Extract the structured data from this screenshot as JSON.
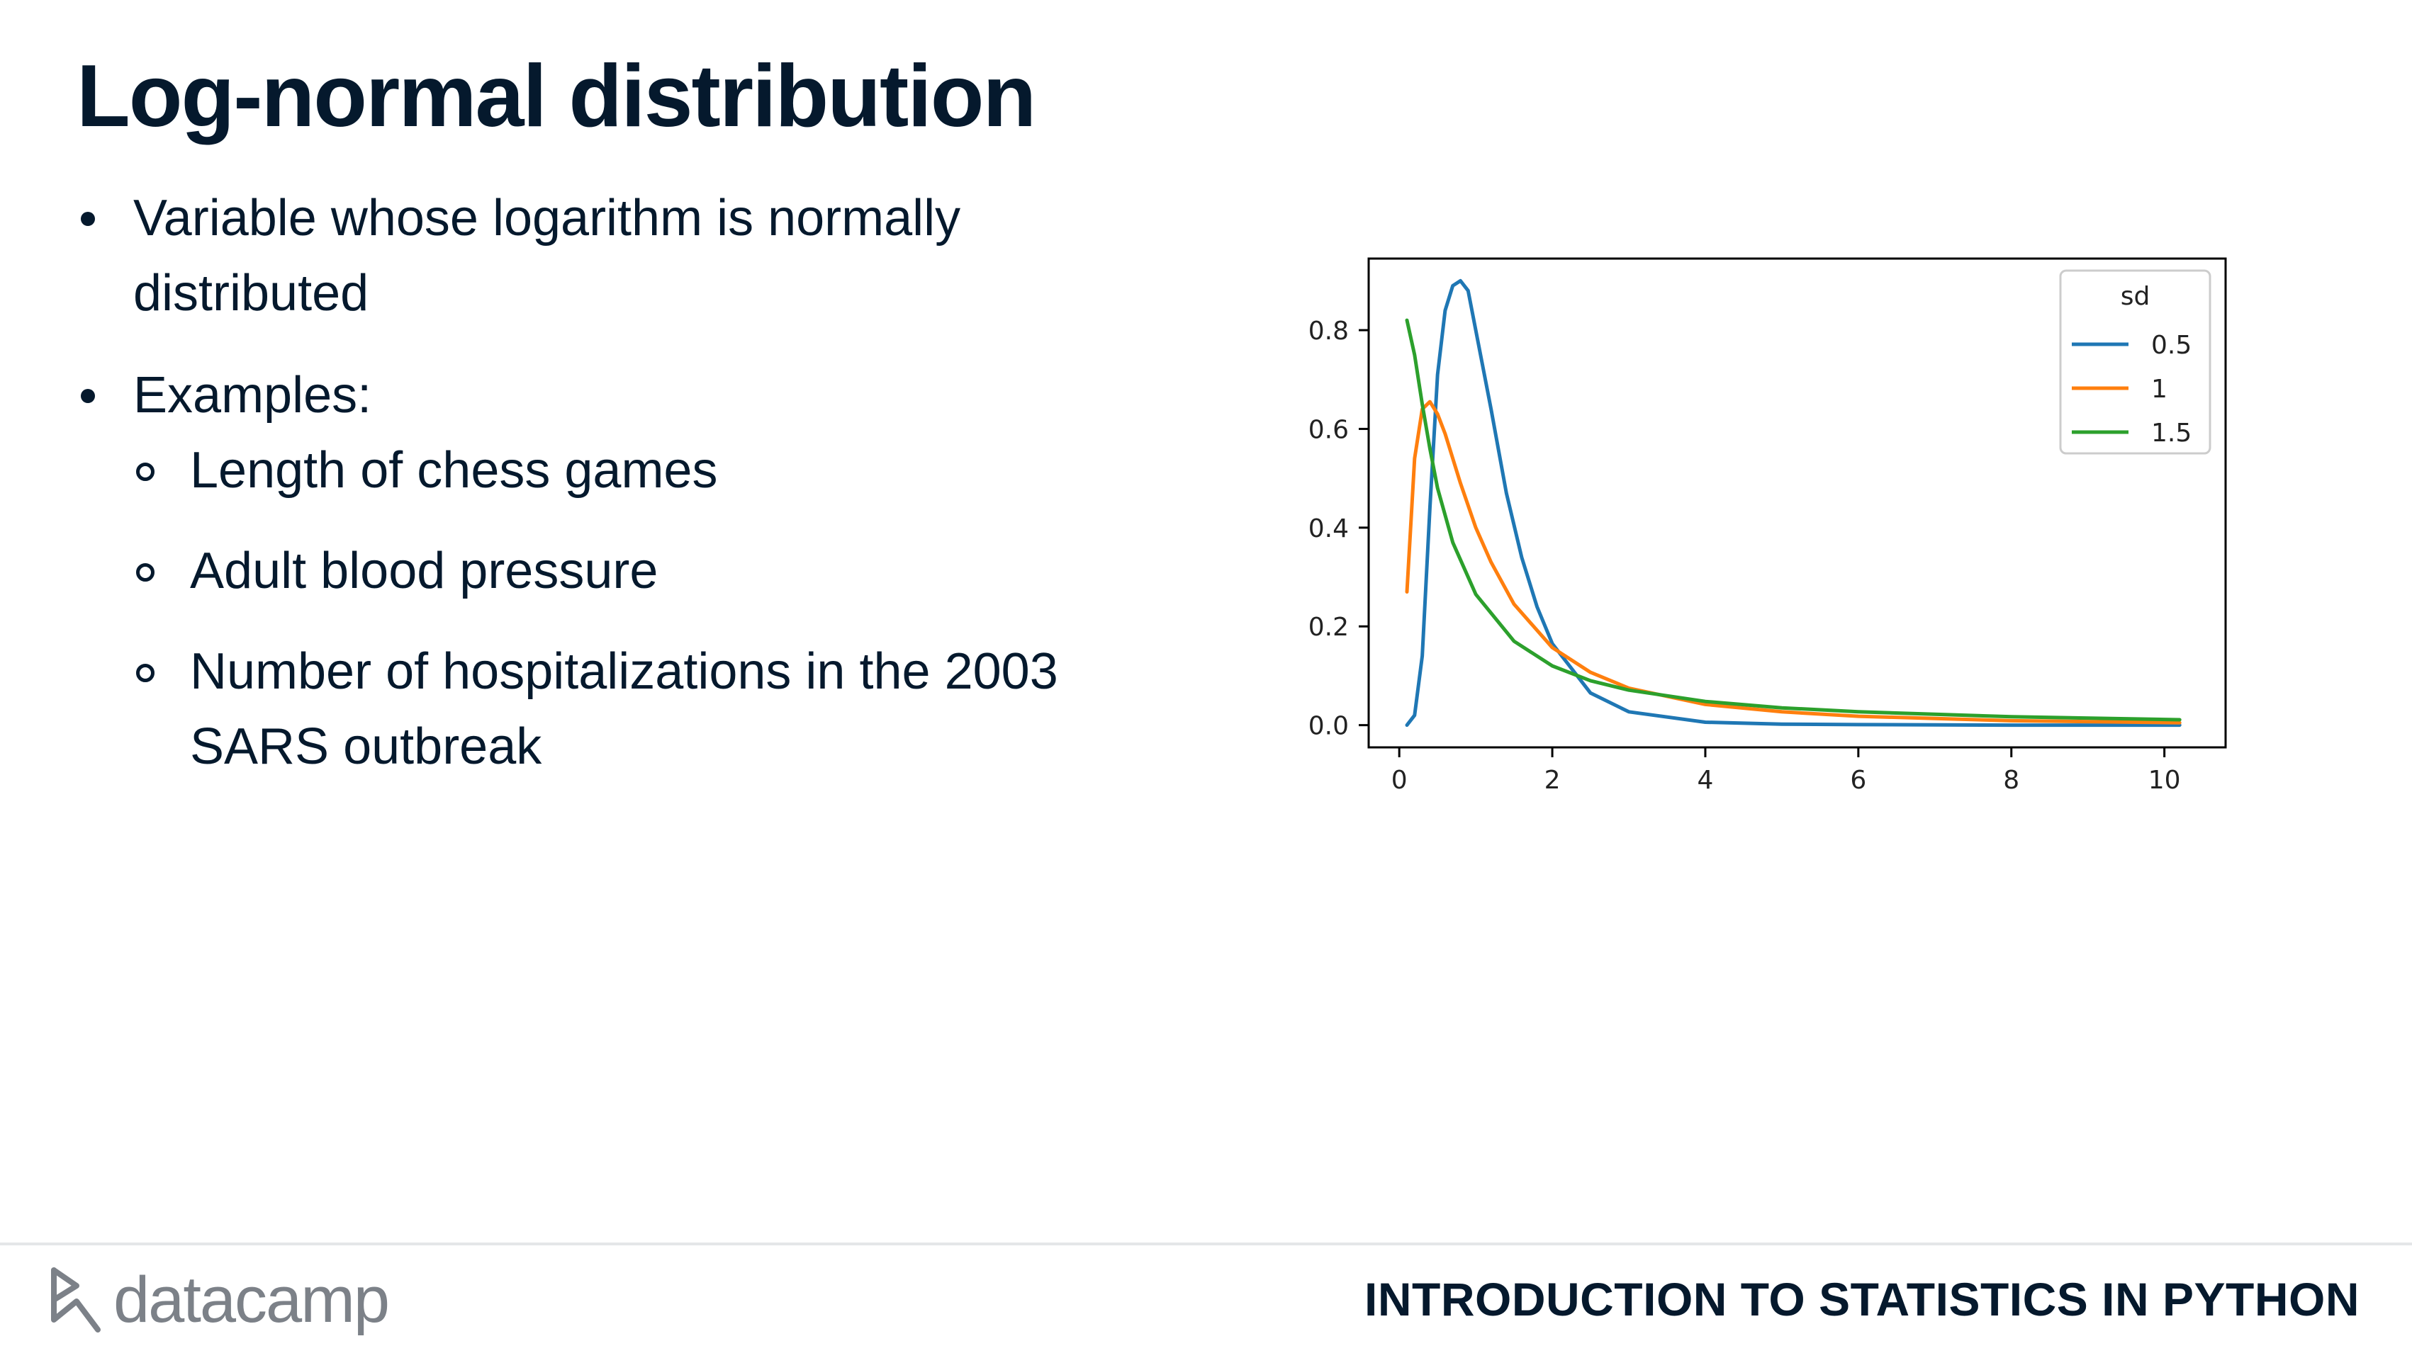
{
  "slide": {
    "title": "Log-normal distribution",
    "bullets": [
      {
        "level": 1,
        "lines": [
          "Variable whose logarithm is normally",
          "distributed"
        ]
      },
      {
        "level": 1,
        "lines": [
          "Examples:"
        ]
      },
      {
        "level": 2,
        "lines": [
          "Length of chess games"
        ]
      },
      {
        "level": 2,
        "lines": [
          "Adult blood pressure"
        ]
      },
      {
        "level": 2,
        "lines": [
          "Number of hospitalizations in the 2003",
          "SARS outbreak"
        ]
      }
    ]
  },
  "footer": {
    "logo_text": "datacamp",
    "course_title": "INTRODUCTION TO STATISTICS IN PYTHON"
  },
  "chart_data": {
    "type": "line",
    "title": "",
    "xlabel": "",
    "ylabel": "",
    "xlim": [
      -0.4,
      10.8
    ],
    "ylim": [
      -0.045,
      0.945
    ],
    "xticks": [
      "0",
      "2",
      "4",
      "6",
      "8",
      "10"
    ],
    "yticks": [
      "0.0",
      "0.2",
      "0.4",
      "0.6",
      "0.8"
    ],
    "grid": false,
    "legend": {
      "title": "sd",
      "placement": "top-right"
    },
    "series": [
      {
        "name": "0.5",
        "color": "#1f77b4",
        "x": [
          0.1,
          0.2,
          0.3,
          0.4,
          0.5,
          0.6,
          0.7,
          0.8,
          0.9,
          1.0,
          1.2,
          1.4,
          1.6,
          1.8,
          2.0,
          2.5,
          3.0,
          4.0,
          5.0,
          6.0,
          8.0,
          10.2
        ],
        "y": [
          0.0,
          0.02,
          0.14,
          0.44,
          0.71,
          0.84,
          0.89,
          0.9,
          0.88,
          0.8,
          0.64,
          0.47,
          0.34,
          0.24,
          0.165,
          0.065,
          0.027,
          0.006,
          0.002,
          0.001,
          0.0,
          0.0
        ]
      },
      {
        "name": "1",
        "color": "#ff7f0e",
        "x": [
          0.1,
          0.2,
          0.3,
          0.4,
          0.5,
          0.6,
          0.8,
          1.0,
          1.2,
          1.5,
          2.0,
          2.5,
          3.0,
          4.0,
          5.0,
          6.0,
          8.0,
          10.2
        ],
        "y": [
          0.27,
          0.54,
          0.64,
          0.655,
          0.63,
          0.59,
          0.49,
          0.4,
          0.33,
          0.245,
          0.157,
          0.107,
          0.075,
          0.042,
          0.027,
          0.018,
          0.009,
          0.005
        ]
      },
      {
        "name": "1.5",
        "color": "#2ca02c",
        "x": [
          0.1,
          0.2,
          0.3,
          0.4,
          0.5,
          0.7,
          1.0,
          1.5,
          2.0,
          2.5,
          3.0,
          4.0,
          5.0,
          6.0,
          8.0,
          10.2
        ],
        "y": [
          0.82,
          0.75,
          0.65,
          0.56,
          0.48,
          0.37,
          0.265,
          0.17,
          0.12,
          0.09,
          0.071,
          0.048,
          0.035,
          0.027,
          0.017,
          0.011
        ]
      }
    ]
  }
}
